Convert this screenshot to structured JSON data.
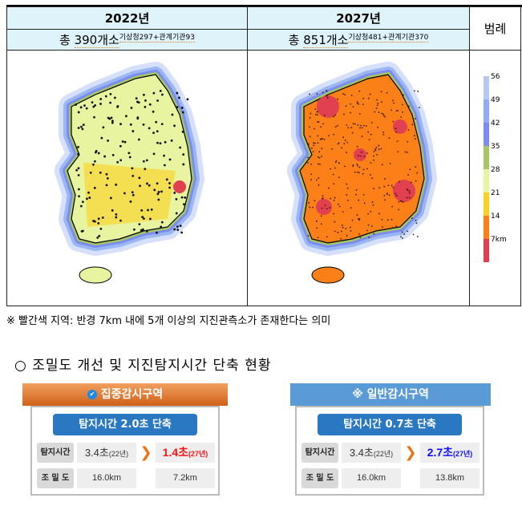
{
  "table": {
    "col1": {
      "year": "2022년",
      "total_prefix": "총 ",
      "total": "390개소",
      "breakdown": "기상청297+관계기관93"
    },
    "col2": {
      "year": "2027년",
      "total_prefix": "총 ",
      "total": "851개소",
      "breakdown": "기상청481+관계기관370"
    },
    "legend_header": "범례",
    "legend": {
      "labels": [
        "56",
        "49",
        "42",
        "35",
        "28",
        "21",
        "14",
        "7km"
      ],
      "colors": [
        "#b8c8f4",
        "#90acf4",
        "#7c8cf0",
        "#a6c764",
        "#e8f4a0",
        "#fcd020",
        "#fc8018",
        "#e04050"
      ]
    }
  },
  "note": "※ 빨간색 지역: 반경 7km 내에 5개 이상의 지진관측소가 존재한다는 의미",
  "heading": "○ 조밀도 개선 및 지진탐지시간 단축 현황",
  "cards": [
    {
      "title_icon": "✔",
      "title": "집중감시구역",
      "headline": "탐지시간 2.0초 단축",
      "row1_label": "탐지시간",
      "row1_before": "3.4초",
      "row1_before_year": "(22년)",
      "row1_after": "1.4초",
      "row1_after_year": "(27년)",
      "row2_label": "조 밀 도",
      "row2_before": "16.0km",
      "row2_after": "7.2km",
      "after_color": "#ff1010"
    },
    {
      "title_icon": "※",
      "title": "일반감시구역",
      "headline": "탐지시간 0.7초 단축",
      "row1_label": "탐지시간",
      "row1_before": "3.4초",
      "row1_before_year": "(22년)",
      "row1_after": "2.7초",
      "row1_after_year": "(27년)",
      "row2_label": "조 밀 도",
      "row2_before": "16.0km",
      "row2_after": "13.8km",
      "after_color": "#1010ff"
    }
  ]
}
